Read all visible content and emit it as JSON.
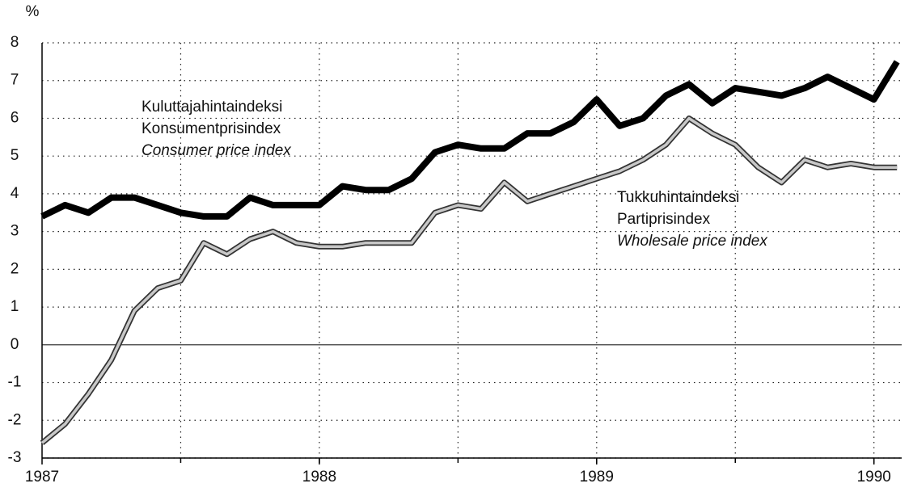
{
  "chart_data": {
    "type": "line",
    "y_unit": "%",
    "x": [
      1987,
      1987.083,
      1987.167,
      1987.25,
      1987.333,
      1987.417,
      1987.5,
      1987.583,
      1987.667,
      1987.75,
      1987.833,
      1987.917,
      1988,
      1988.083,
      1988.167,
      1988.25,
      1988.333,
      1988.417,
      1988.5,
      1988.583,
      1988.667,
      1988.75,
      1988.833,
      1988.917,
      1989,
      1989.083,
      1989.167,
      1989.25,
      1989.333,
      1989.417,
      1989.5,
      1989.583,
      1989.667,
      1989.75,
      1989.833,
      1989.917,
      1990,
      1990.083
    ],
    "series": [
      {
        "name": "Consumer price index",
        "labels": [
          "Kuluttajahintaindeksi",
          "Konsumentprisindex"
        ],
        "color": "#000000",
        "values": [
          3.4,
          3.7,
          3.5,
          3.9,
          3.9,
          3.7,
          3.5,
          3.4,
          3.4,
          3.9,
          3.7,
          3.7,
          3.7,
          4.2,
          4.1,
          4.1,
          4.4,
          5.1,
          5.3,
          5.2,
          5.2,
          5.6,
          5.6,
          5.9,
          6.5,
          5.8,
          6.0,
          6.6,
          6.9,
          6.4,
          6.8,
          6.7,
          6.6,
          6.8,
          7.1,
          6.8,
          6.5,
          7.5
        ]
      },
      {
        "name": "Wholesale price index",
        "labels": [
          "Tukkuhintaindeksi",
          "Partiprisindex"
        ],
        "color": "#c8c8c8",
        "values": [
          -2.6,
          -2.1,
          -1.3,
          -0.4,
          0.9,
          1.5,
          1.7,
          2.7,
          2.4,
          2.8,
          3.0,
          2.7,
          2.6,
          2.6,
          2.7,
          2.7,
          2.7,
          3.5,
          3.7,
          3.6,
          4.3,
          3.8,
          4.0,
          4.2,
          4.4,
          4.6,
          4.9,
          5.3,
          6.0,
          5.6,
          5.3,
          4.7,
          4.3,
          4.9,
          4.7,
          4.8,
          4.7,
          4.7
        ]
      }
    ],
    "xlim": [
      1987,
      1990.1
    ],
    "xticks": [
      1987,
      1988,
      1989,
      1990
    ],
    "xgrid": [
      1987.5,
      1988,
      1988.5,
      1989,
      1989.5,
      1990
    ],
    "ylim": [
      -3,
      8
    ],
    "yticks": [
      -3,
      -2,
      -1,
      0,
      1,
      2,
      3,
      4,
      5,
      6,
      7,
      8
    ],
    "grid": true
  }
}
